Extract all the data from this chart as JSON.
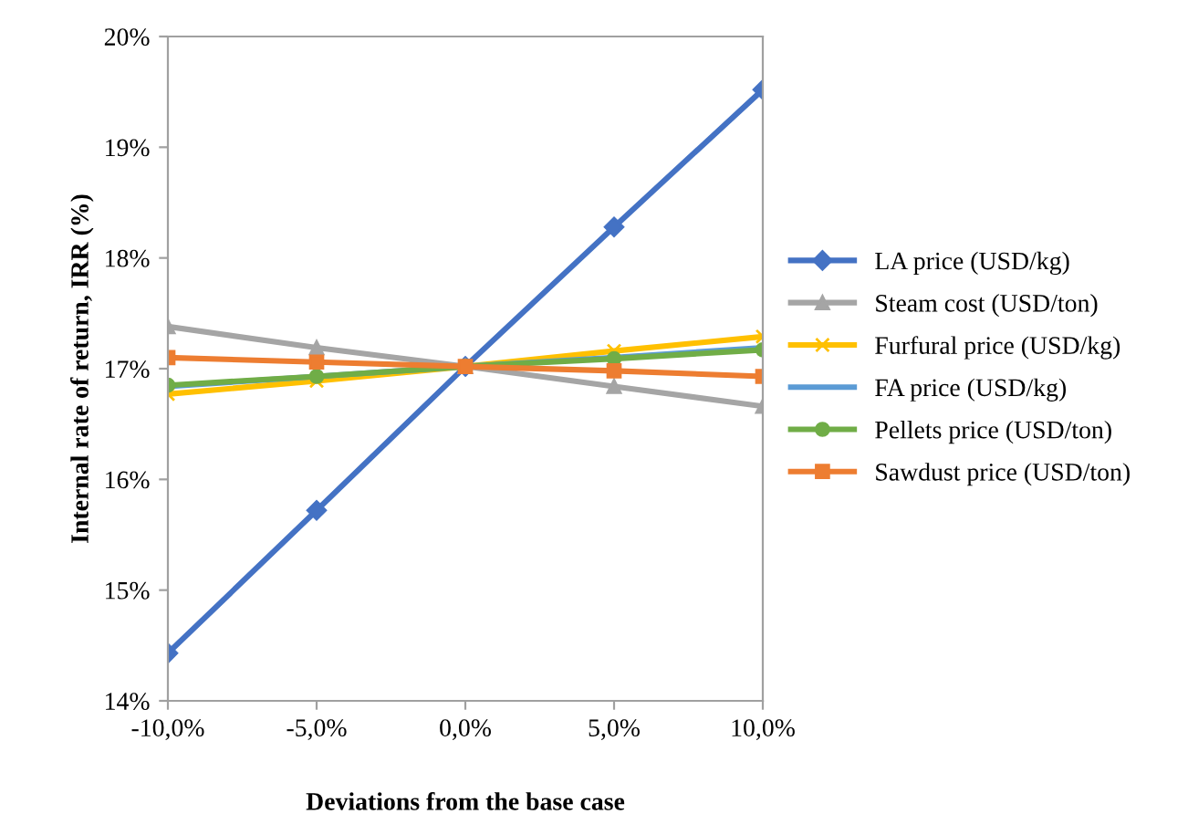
{
  "chart_data": {
    "type": "line",
    "xlabel": "Deviations from the base case",
    "ylabel": "Internal rate of return, IRR (%)",
    "x": [
      -10,
      -5,
      0,
      5,
      10
    ],
    "xlim": [
      -10,
      10
    ],
    "xticks": [
      {
        "value": -10,
        "label": "-10,0%"
      },
      {
        "value": -5,
        "label": "-5,0%"
      },
      {
        "value": 0,
        "label": "0,0%"
      },
      {
        "value": 5,
        "label": "5,0%"
      },
      {
        "value": 10,
        "label": "10,0%"
      }
    ],
    "ylim": [
      14,
      20
    ],
    "yticks": [
      {
        "value": 14,
        "label": "14%"
      },
      {
        "value": 15,
        "label": "15%"
      },
      {
        "value": 16,
        "label": "16%"
      },
      {
        "value": 17,
        "label": "17%"
      },
      {
        "value": 18,
        "label": "18%"
      },
      {
        "value": 19,
        "label": "19%"
      },
      {
        "value": 20,
        "label": "20%"
      }
    ],
    "grid": false,
    "legend": "right",
    "line_style": "solid",
    "series": [
      {
        "name": "LA price (USD/kg)",
        "color": "#4472c4",
        "marker": "diamond",
        "values": [
          14.43,
          15.72,
          17.02,
          18.28,
          19.52
        ]
      },
      {
        "name": "Steam cost (USD/ton)",
        "color": "#a5a5a5",
        "marker": "triangle",
        "values": [
          17.38,
          17.19,
          17.02,
          16.84,
          16.66
        ]
      },
      {
        "name": "Furfural price (USD/kg)",
        "color": "#ffc000",
        "marker": "cross",
        "values": [
          16.77,
          16.89,
          17.02,
          17.16,
          17.29
        ]
      },
      {
        "name": "FA price (USD/kg)",
        "color": "#5b9bd5",
        "marker": "none",
        "values": [
          16.84,
          16.93,
          17.02,
          17.1,
          17.19
        ]
      },
      {
        "name": "Pellets price (USD/ton)",
        "color": "#70ad47",
        "marker": "circle",
        "values": [
          16.85,
          16.93,
          17.02,
          17.09,
          17.17
        ]
      },
      {
        "name": "Sawdust price (USD/ton)",
        "color": "#ed7d31",
        "marker": "square",
        "values": [
          17.1,
          17.06,
          17.02,
          16.98,
          16.93
        ]
      }
    ]
  }
}
